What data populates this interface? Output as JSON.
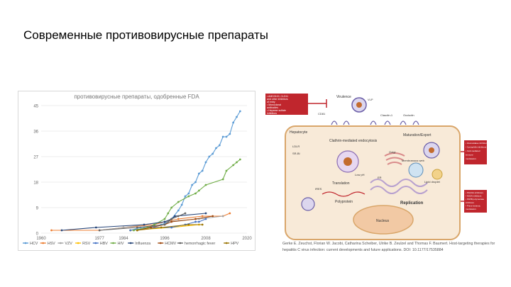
{
  "slide": {
    "title": "Современные противовирусные препараты"
  },
  "colors": {
    "HCV": "#5b9bd5",
    "HSV": "#ed7d31",
    "VZV": "#a5a5a5",
    "RSV": "#ffc000",
    "HBV": "#4472c4",
    "HIV": "#70ad47",
    "Influenza": "#264478",
    "HCMV": "#9e480e",
    "hemorrhagic fever": "#636363",
    "HPV": "#997300",
    "accent_red": "#c0262d",
    "cell_fill": "#f8ead8",
    "cell_border": "#d9a66a"
  },
  "chart_data": {
    "type": "line",
    "title": "противовирусные препараты, одобренные FDA",
    "xlim": [
      1960,
      2020
    ],
    "ylim": [
      0,
      45
    ],
    "x_ticks": [
      "1960",
      "1977",
      "1984",
      "1996",
      "2008",
      "2020"
    ],
    "y_ticks": [
      "0",
      "9",
      "18",
      "27",
      "36",
      "45"
    ],
    "grid": true,
    "legend_position": "bottom",
    "series": [
      {
        "name": "HCV",
        "points": [
          [
            1986,
            1
          ],
          [
            1989,
            2
          ],
          [
            1991,
            2
          ],
          [
            1995,
            3
          ],
          [
            1997,
            4
          ],
          [
            1998,
            5
          ],
          [
            2000,
            8
          ],
          [
            2001,
            10
          ],
          [
            2002,
            13
          ],
          [
            2003,
            14
          ],
          [
            2004,
            17
          ],
          [
            2005,
            18
          ],
          [
            2006,
            21
          ],
          [
            2007,
            22
          ],
          [
            2008,
            25
          ],
          [
            2009,
            27
          ],
          [
            2010,
            28
          ],
          [
            2011,
            30
          ],
          [
            2012,
            31
          ],
          [
            2013,
            34
          ],
          [
            2014,
            34
          ],
          [
            2015,
            35
          ],
          [
            2016,
            39
          ],
          [
            2017,
            41
          ],
          [
            2018,
            43
          ]
        ]
      },
      {
        "name": "HSV",
        "points": [
          [
            1963,
            1
          ],
          [
            1977,
            1
          ],
          [
            1984,
            2
          ],
          [
            1993,
            3
          ],
          [
            1996,
            4
          ],
          [
            2000,
            5
          ],
          [
            2007,
            6
          ],
          [
            2013,
            6
          ],
          [
            2015,
            7
          ]
        ]
      },
      {
        "name": "VZV",
        "points": [
          [
            1977,
            1
          ],
          [
            1984,
            2
          ],
          [
            1996,
            4
          ],
          [
            2006,
            5
          ],
          [
            2013,
            6
          ]
        ]
      },
      {
        "name": "RSV",
        "points": [
          [
            1986,
            1
          ],
          [
            1998,
            2
          ],
          [
            2006,
            3
          ]
        ]
      },
      {
        "name": "HBV",
        "points": [
          [
            1986,
            1
          ],
          [
            1992,
            2
          ],
          [
            1998,
            2
          ],
          [
            2002,
            3
          ],
          [
            2005,
            4
          ],
          [
            2006,
            4
          ],
          [
            2008,
            5
          ]
        ]
      },
      {
        "name": "HIV",
        "points": [
          [
            1987,
            1
          ],
          [
            1991,
            2
          ],
          [
            1993,
            3
          ],
          [
            1996,
            5
          ],
          [
            1997,
            7
          ],
          [
            1998,
            9
          ],
          [
            2000,
            11
          ],
          [
            2003,
            13
          ],
          [
            2005,
            14
          ],
          [
            2006,
            15
          ],
          [
            2008,
            17
          ],
          [
            2013,
            19
          ],
          [
            2014,
            22
          ],
          [
            2016,
            24
          ],
          [
            2017,
            25
          ],
          [
            2018,
            26
          ]
        ]
      },
      {
        "name": "Influenza",
        "points": [
          [
            1966,
            1
          ],
          [
            1976,
            2
          ],
          [
            1990,
            3
          ],
          [
            1996,
            4
          ],
          [
            1998,
            5
          ],
          [
            1999,
            6
          ],
          [
            2008,
            7
          ]
        ]
      },
      {
        "name": "HCMV",
        "points": [
          [
            1988,
            1
          ],
          [
            1992,
            2
          ],
          [
            1996,
            3
          ],
          [
            1998,
            4
          ],
          [
            2005,
            5
          ],
          [
            2010,
            6
          ]
        ]
      },
      {
        "name": "hemorrhagic fever",
        "points": [
          [
            1977,
            1
          ],
          [
            1988,
            2
          ],
          [
            1996,
            3
          ],
          [
            1998,
            5
          ],
          [
            2000,
            6
          ],
          [
            2002,
            7
          ]
        ]
      },
      {
        "name": "HPV",
        "points": [
          [
            1988,
            1
          ],
          [
            1995,
            2
          ],
          [
            2003,
            3
          ],
          [
            2007,
            3
          ]
        ]
      }
    ]
  },
  "figure": {
    "top_box": [
      "• AMD3100, CLD11",
      "  and other inhibitors",
      "  of entry",
      "• Monoclonal",
      "  antibodies",
      "• Heparan sulfate",
      "  inhibitors"
    ],
    "right_box_1": [
      "• Glucosidase inhibitors",
      "• Cyclophilin inhibitors",
      "• Cell-mediated",
      "  immune",
      "  modulators"
    ],
    "right_box_2": [
      "• NS3/4A inhibitors",
      "• NS5A inhibitors",
      "• NS5B polymerase",
      "  inhibitors",
      "• Prime-intrinsic",
      "  modulators"
    ],
    "labels": {
      "virulence": "Virulence",
      "hepatocyte": "Hepatocyte",
      "ldlr": "LDLR",
      "sr_b1": "SR-BI",
      "cd81": "CD81",
      "claudin1": "Claudin-1",
      "occludin": "Occludin",
      "endocytosis": "Clathrin-mediated endocytosis",
      "maturation": "Maturation/Export",
      "er": "ER",
      "golgi": "Golgi",
      "translation": "Translation",
      "membranous_web": "Membranous web",
      "replication": "Replication",
      "polyprotein": "Polyprotein",
      "nucleus": "Nucleus",
      "vlp": "VLP",
      "low_ph": "Low pH",
      "lipid_droplet": "Lipid droplet",
      "ires": "IRES"
    }
  },
  "citation": "Gerke E. Zeuchst, Florian W. Jacobi, Catharina Scheiber, Ulrike B. Zeulzel and Thomas F. Baumert. Host-targeting therapies for hepatitis C virus infection: current developments and future applications. DOI: 10.1177/17535884"
}
